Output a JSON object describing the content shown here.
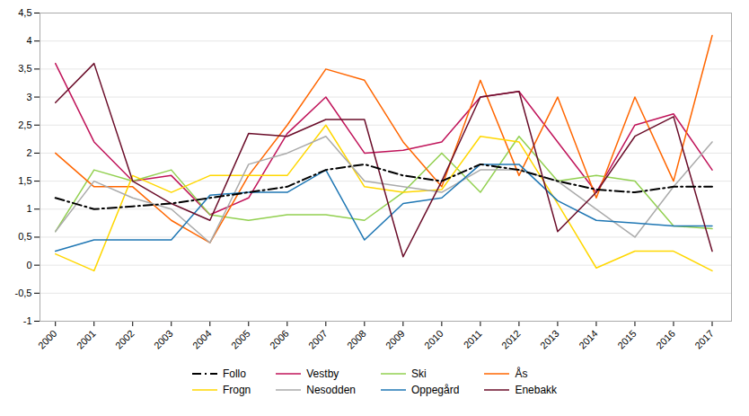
{
  "chart_data": {
    "type": "line",
    "x": [
      2000,
      2001,
      2002,
      2003,
      2004,
      2005,
      2006,
      2007,
      2008,
      2009,
      2010,
      2011,
      2012,
      2013,
      2014,
      2015,
      2016,
      2017
    ],
    "series": [
      {
        "name": "Follo",
        "color": "#000000",
        "line_style": "dashdot",
        "values": [
          1.2,
          1.0,
          1.05,
          1.1,
          1.2,
          1.3,
          1.4,
          1.7,
          1.8,
          1.6,
          1.5,
          1.8,
          1.7,
          1.5,
          1.35,
          1.3,
          1.4,
          1.4
        ]
      },
      {
        "name": "Vestby",
        "color": "#C0145A",
        "line_style": "solid",
        "values": [
          3.6,
          2.2,
          1.5,
          1.6,
          0.9,
          1.2,
          2.35,
          3.0,
          2.0,
          2.05,
          2.2,
          3.0,
          3.1,
          2.2,
          1.3,
          2.5,
          2.7,
          1.7
        ]
      },
      {
        "name": "Ski",
        "color": "#92D050",
        "line_style": "solid",
        "values": [
          0.6,
          1.7,
          1.5,
          1.7,
          0.9,
          0.8,
          0.9,
          0.9,
          0.8,
          1.3,
          2.0,
          1.3,
          2.3,
          1.5,
          1.6,
          1.5,
          0.7,
          0.65
        ]
      },
      {
        "name": "Ås",
        "color": "#FF6600",
        "line_style": "solid",
        "values": [
          2.0,
          1.4,
          1.4,
          0.8,
          0.4,
          1.6,
          2.5,
          3.5,
          3.3,
          2.2,
          1.4,
          3.3,
          1.6,
          3.0,
          1.2,
          3.0,
          1.5,
          4.1
        ]
      },
      {
        "name": "Frogn",
        "color": "#FFD700",
        "line_style": "solid",
        "values": [
          0.2,
          -0.1,
          1.6,
          1.3,
          1.6,
          1.6,
          1.6,
          2.5,
          1.4,
          1.3,
          1.35,
          2.3,
          2.2,
          1.1,
          -0.05,
          0.25,
          0.25,
          -0.1
        ]
      },
      {
        "name": "Nesodden",
        "color": "#AAAAAA",
        "line_style": "solid",
        "values": [
          0.6,
          1.5,
          1.2,
          1.0,
          0.4,
          1.8,
          2.0,
          2.3,
          1.5,
          1.4,
          1.3,
          1.7,
          1.7,
          1.5,
          1.0,
          0.5,
          1.4,
          2.2
        ]
      },
      {
        "name": "Oppegård",
        "color": "#1F77B4",
        "line_style": "solid",
        "values": [
          0.25,
          0.45,
          0.45,
          0.45,
          1.25,
          1.3,
          1.3,
          1.7,
          0.45,
          1.1,
          1.2,
          1.8,
          1.8,
          1.15,
          0.8,
          0.75,
          0.7,
          0.7
        ]
      },
      {
        "name": "Enebakk",
        "color": "#6B0E2A",
        "line_style": "solid",
        "values": [
          2.9,
          3.6,
          1.5,
          1.1,
          0.8,
          2.35,
          2.3,
          2.6,
          2.6,
          0.15,
          1.5,
          3.0,
          3.1,
          0.6,
          1.3,
          2.3,
          2.65,
          0.25
        ]
      }
    ],
    "xlim": [
      1999.6,
      2017.5
    ],
    "xticks": [
      2000,
      2001,
      2002,
      2003,
      2004,
      2005,
      2006,
      2007,
      2008,
      2009,
      2010,
      2011,
      2012,
      2013,
      2014,
      2015,
      2016,
      2017
    ],
    "ylim": [
      -1.0,
      4.5
    ],
    "yticks": [
      -1,
      {
        "value": -0.5,
        "label": "-0,5"
      },
      0,
      {
        "value": 0.5,
        "label": "0,5"
      },
      1,
      {
        "value": 1.5,
        "label": "1,5"
      },
      2,
      {
        "value": 2.5,
        "label": "2,5"
      },
      3,
      {
        "value": 3.5,
        "label": "3,5"
      },
      4,
      {
        "value": 4.5,
        "label": "4,5"
      }
    ],
    "grid": true,
    "legend": "bottom"
  }
}
